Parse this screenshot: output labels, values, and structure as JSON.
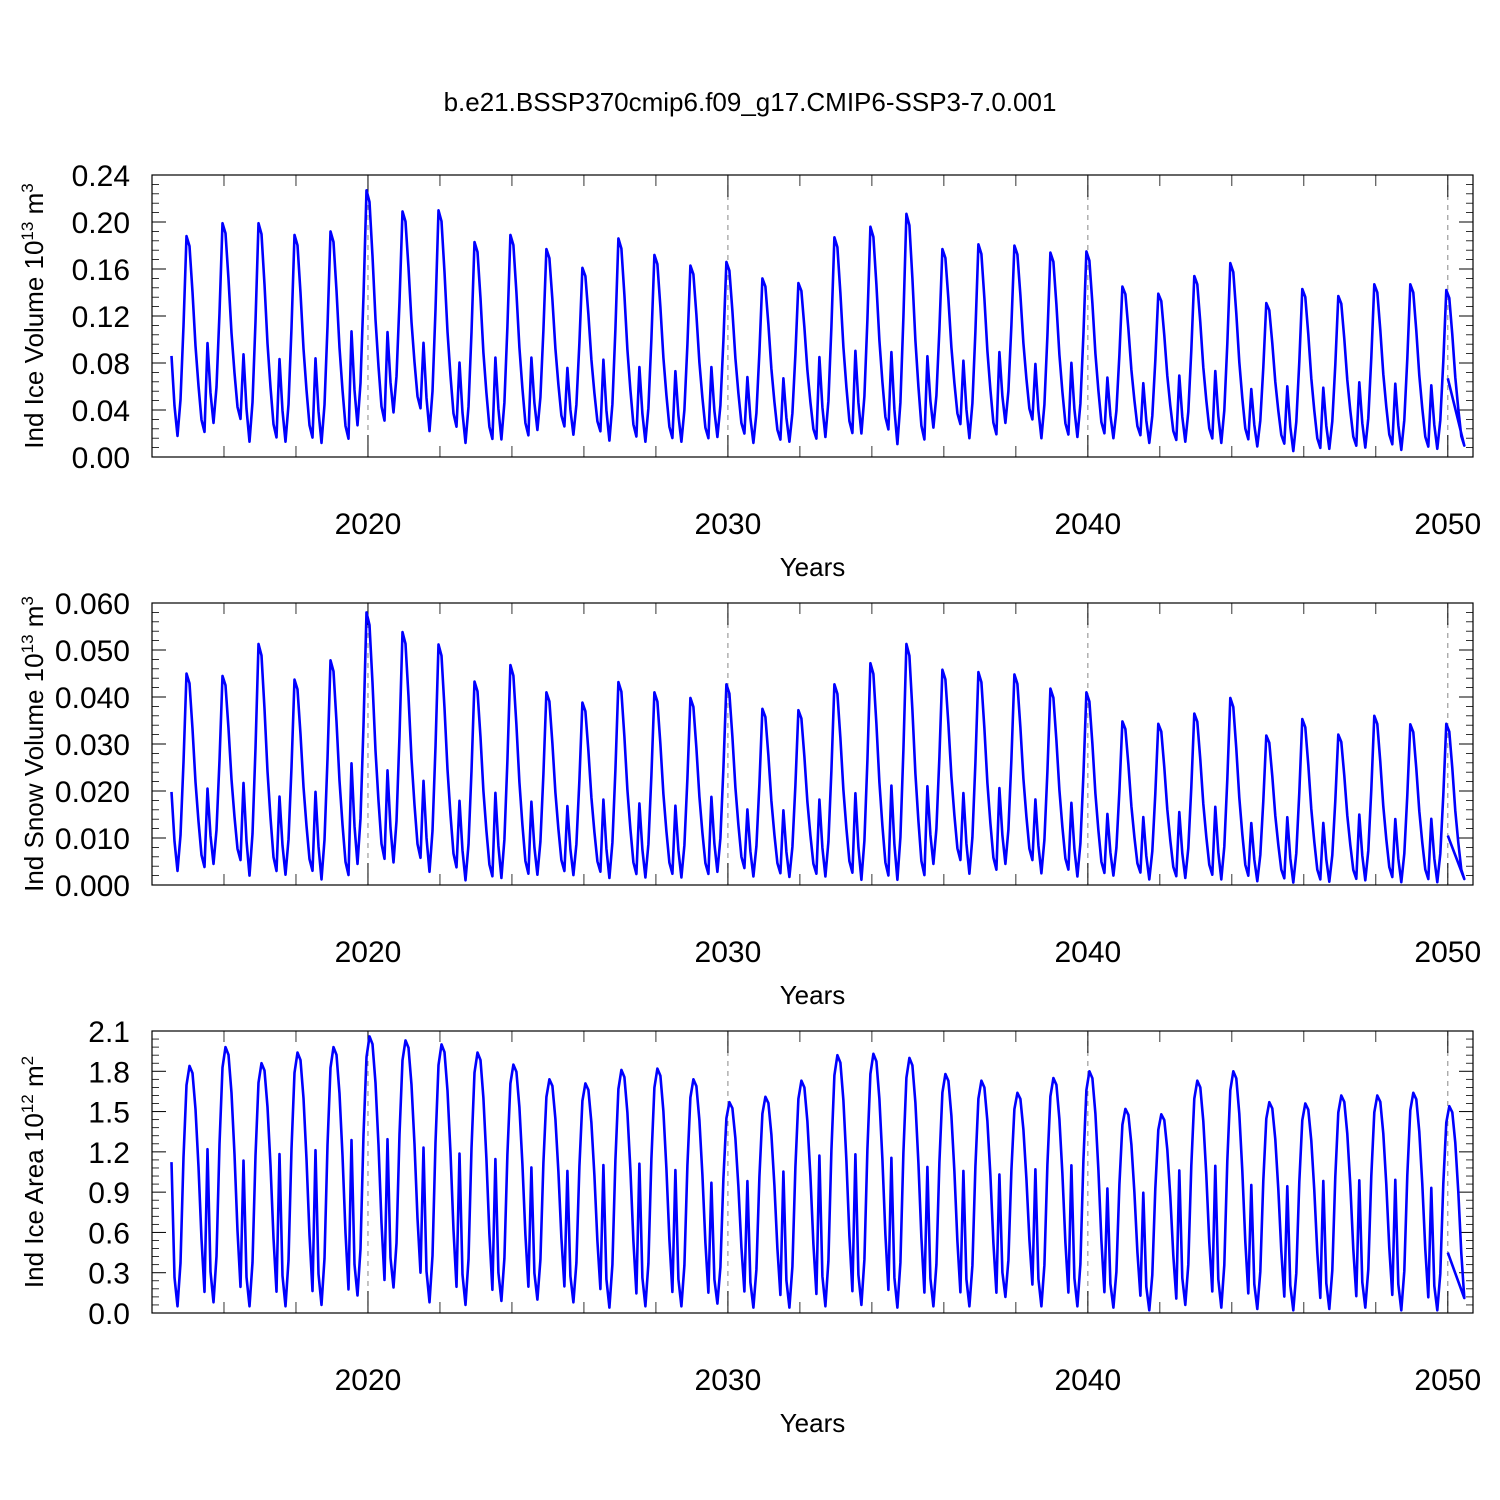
{
  "title": "b.e21.BSSP370cmip6.f09_g17.CMIP6-SSP3-7.0.001",
  "series_color": "#0000ff",
  "chart_data": [
    {
      "type": "line",
      "title": "b.e21.BSSP370cmip6.f09_g17.CMIP6-SSP3-7.0.001",
      "xlabel": "Years",
      "ylabel": {
        "text": "Ind Ice Volume 10",
        "exp": "13",
        "unit": " m",
        "unit_exp": "3"
      },
      "xlim": [
        2014.0,
        2050.7
      ],
      "ylim": [
        0.0,
        0.24
      ],
      "xticks": [
        2020,
        2030,
        2040,
        2050
      ],
      "yticks": [
        "0.00",
        "0.04",
        "0.08",
        "0.12",
        "0.16",
        "0.20",
        "0.24"
      ],
      "grid": "dashed vertical at decades",
      "monthly_cycle": [
        0.4,
        0.15,
        0.0,
        0.18,
        0.55,
        1.0,
        0.95,
        0.72,
        0.45,
        0.25,
        0.08,
        0.02
      ],
      "annual_peak": [
        0.188,
        0.199,
        0.199,
        0.189,
        0.192,
        0.227,
        0.209,
        0.21,
        0.183,
        0.189,
        0.177,
        0.161,
        0.186,
        0.172,
        0.163,
        0.166,
        0.152,
        0.148,
        0.187,
        0.196,
        0.207,
        0.177,
        0.181,
        0.18,
        0.174,
        0.175,
        0.145,
        0.139,
        0.154,
        0.165,
        0.131,
        0.143,
        0.137,
        0.147,
        0.147,
        0.142
      ],
      "annual_trough": [
        0.018,
        0.029,
        0.013,
        0.013,
        0.012,
        0.027,
        0.038,
        0.022,
        0.012,
        0.015,
        0.023,
        0.019,
        0.014,
        0.013,
        0.013,
        0.017,
        0.012,
        0.013,
        0.017,
        0.02,
        0.011,
        0.025,
        0.016,
        0.029,
        0.016,
        0.017,
        0.016,
        0.012,
        0.013,
        0.012,
        0.009,
        0.005,
        0.007,
        0.008,
        0.006,
        0.007
      ],
      "end_value": 0.067
    },
    {
      "type": "line",
      "xlabel": "Years",
      "ylabel": {
        "text": "Ind Snow Volume 10",
        "exp": "13",
        "unit": " m",
        "unit_exp": "3"
      },
      "xlim": [
        2014.0,
        2050.7
      ],
      "ylim": [
        0.0,
        0.06
      ],
      "xticks": [
        2020,
        2030,
        2040,
        2050
      ],
      "yticks": [
        "0.000",
        "0.010",
        "0.020",
        "0.030",
        "0.040",
        "0.050",
        "0.060"
      ],
      "grid": "dashed vertical at decades",
      "monthly_cycle": [
        0.4,
        0.15,
        0.0,
        0.18,
        0.55,
        1.0,
        0.95,
        0.72,
        0.45,
        0.25,
        0.08,
        0.02
      ],
      "annual_peak": [
        0.045,
        0.0445,
        0.0513,
        0.0437,
        0.0478,
        0.058,
        0.0538,
        0.0512,
        0.0433,
        0.0468,
        0.041,
        0.0388,
        0.0432,
        0.041,
        0.0398,
        0.0427,
        0.0375,
        0.0372,
        0.0427,
        0.0472,
        0.0513,
        0.0458,
        0.0453,
        0.0448,
        0.0418,
        0.041,
        0.0348,
        0.0343,
        0.0365,
        0.0398,
        0.0318,
        0.0353,
        0.032,
        0.036,
        0.0342,
        0.0343
      ],
      "annual_trough": [
        0.003,
        0.0045,
        0.002,
        0.0022,
        0.0012,
        0.0045,
        0.0048,
        0.0028,
        0.001,
        0.0015,
        0.0022,
        0.0021,
        0.0015,
        0.0016,
        0.0016,
        0.0028,
        0.0018,
        0.0017,
        0.0018,
        0.0011,
        0.0011,
        0.0045,
        0.0024,
        0.0045,
        0.0025,
        0.0018,
        0.002,
        0.0012,
        0.0015,
        0.0012,
        0.0008,
        0.0005,
        0.0007,
        0.001,
        0.0006,
        0.0006
      ],
      "end_value": 0.0105
    },
    {
      "type": "line",
      "xlabel": "Years",
      "ylabel": {
        "text": "Ind Ice Area 10",
        "exp": "12",
        "unit": " m",
        "unit_exp": "2"
      },
      "xlim": [
        2014.0,
        2050.7
      ],
      "ylim": [
        0.0,
        2.1
      ],
      "xticks": [
        2020,
        2030,
        2040,
        2050
      ],
      "yticks": [
        "0.0",
        "0.3",
        "0.6",
        "0.9",
        "1.2",
        "1.5",
        "1.8",
        "2.1"
      ],
      "grid": "dashed vertical at decades",
      "monthly_cycle": [
        0.6,
        0.12,
        0.0,
        0.18,
        0.62,
        0.92,
        1.0,
        0.97,
        0.82,
        0.58,
        0.28,
        0.06
      ],
      "annual_peak": [
        1.84,
        1.98,
        1.86,
        1.94,
        1.98,
        2.06,
        2.03,
        2.0,
        1.94,
        1.85,
        1.74,
        1.71,
        1.81,
        1.82,
        1.74,
        1.57,
        1.61,
        1.73,
        1.92,
        1.93,
        1.9,
        1.78,
        1.73,
        1.64,
        1.75,
        1.8,
        1.52,
        1.48,
        1.73,
        1.8,
        1.57,
        1.56,
        1.62,
        1.62,
        1.64,
        1.54
      ],
      "annual_trough": [
        0.05,
        0.08,
        0.05,
        0.05,
        0.06,
        0.13,
        0.19,
        0.08,
        0.06,
        0.09,
        0.1,
        0.08,
        0.04,
        0.05,
        0.05,
        0.07,
        0.04,
        0.04,
        0.05,
        0.06,
        0.04,
        0.05,
        0.05,
        0.12,
        0.05,
        0.05,
        0.04,
        0.02,
        0.06,
        0.04,
        0.03,
        0.02,
        0.03,
        0.04,
        0.02,
        0.02
      ],
      "end_value": 0.45
    }
  ]
}
